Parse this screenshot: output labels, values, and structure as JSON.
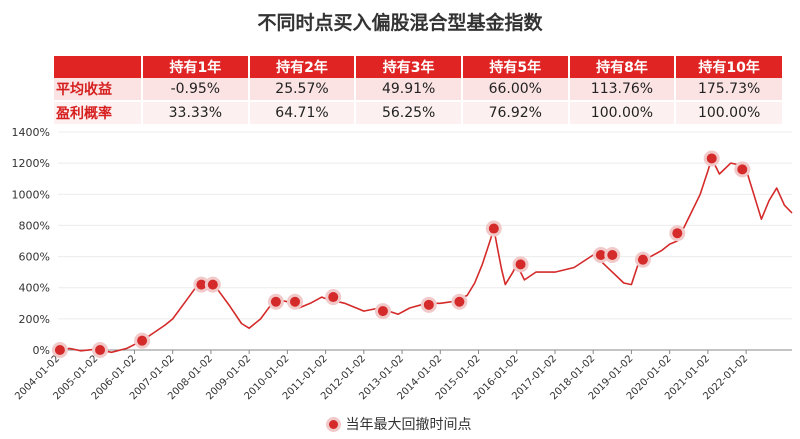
{
  "title": "不同时点买入偏股混合型基金指数",
  "table": {
    "headers": [
      "持有1年",
      "持有2年",
      "持有3年",
      "持有5年",
      "持有8年",
      "持有10年"
    ],
    "rows": [
      {
        "label": "平均收益",
        "values": [
          "-0.95%",
          "25.57%",
          "49.91%",
          "66.00%",
          "113.76%",
          "175.73%"
        ]
      },
      {
        "label": "盈利概率",
        "values": [
          "33.33%",
          "64.71%",
          "56.25%",
          "76.92%",
          "100.00%",
          "100.00%"
        ]
      }
    ]
  },
  "legend_label": "当年最大回撤时间点",
  "colors": {
    "line": "#d42a2a",
    "header": "#e02424",
    "marker_ring": "#f2c9c9"
  },
  "chart_data": {
    "type": "line",
    "ylim": [
      0,
      1400
    ],
    "y_ticks": [
      "0%",
      "200%",
      "400%",
      "600%",
      "800%",
      "1000%",
      "1200%",
      "1400%"
    ],
    "x_ticks": [
      "2004-01-02",
      "2005-01-02",
      "2006-01-02",
      "2007-01-02",
      "2008-01-02",
      "2009-01-02",
      "2010-01-02",
      "2011-01-02",
      "2012-01-02",
      "2013-01-02",
      "2014-01-02",
      "2015-01-02",
      "2016-01-02",
      "2017-01-02",
      "2018-01-02",
      "2019-01-02",
      "2020-01-02",
      "2021-01-02",
      "2022-01-02"
    ],
    "series": [
      {
        "points": [
          [
            2004.0,
            0
          ],
          [
            2004.3,
            10
          ],
          [
            2004.6,
            -5
          ],
          [
            2005.0,
            5
          ],
          [
            2005.4,
            -15
          ],
          [
            2005.8,
            10
          ],
          [
            2006.2,
            60
          ],
          [
            2006.5,
            110
          ],
          [
            2006.8,
            160
          ],
          [
            2007.0,
            200
          ],
          [
            2007.3,
            300
          ],
          [
            2007.6,
            400
          ],
          [
            2007.8,
            440
          ],
          [
            2008.0,
            420
          ],
          [
            2008.2,
            380
          ],
          [
            2008.5,
            280
          ],
          [
            2008.8,
            170
          ],
          [
            2009.0,
            140
          ],
          [
            2009.3,
            200
          ],
          [
            2009.6,
            300
          ],
          [
            2009.8,
            320
          ],
          [
            2010.0,
            310
          ],
          [
            2010.3,
            270
          ],
          [
            2010.6,
            300
          ],
          [
            2010.9,
            340
          ],
          [
            2011.0,
            330
          ],
          [
            2011.5,
            300
          ],
          [
            2011.9,
            260
          ],
          [
            2012.0,
            250
          ],
          [
            2012.4,
            270
          ],
          [
            2012.9,
            230
          ],
          [
            2013.2,
            270
          ],
          [
            2013.5,
            290
          ],
          [
            2013.8,
            300
          ],
          [
            2014.0,
            300
          ],
          [
            2014.3,
            310
          ],
          [
            2014.7,
            350
          ],
          [
            2014.9,
            430
          ],
          [
            2015.1,
            550
          ],
          [
            2015.3,
            700
          ],
          [
            2015.4,
            780
          ],
          [
            2015.5,
            650
          ],
          [
            2015.6,
            520
          ],
          [
            2015.7,
            420
          ],
          [
            2015.9,
            500
          ],
          [
            2016.0,
            550
          ],
          [
            2016.2,
            450
          ],
          [
            2016.5,
            500
          ],
          [
            2017.0,
            500
          ],
          [
            2017.5,
            530
          ],
          [
            2018.0,
            610
          ],
          [
            2018.2,
            570
          ],
          [
            2018.5,
            500
          ],
          [
            2018.8,
            430
          ],
          [
            2019.0,
            420
          ],
          [
            2019.2,
            570
          ],
          [
            2019.5,
            600
          ],
          [
            2019.8,
            640
          ],
          [
            2020.0,
            680
          ],
          [
            2020.2,
            700
          ],
          [
            2020.5,
            850
          ],
          [
            2020.8,
            1000
          ],
          [
            2021.0,
            1150
          ],
          [
            2021.1,
            1230
          ],
          [
            2021.3,
            1130
          ],
          [
            2021.6,
            1200
          ],
          [
            2021.8,
            1190
          ],
          [
            2022.0,
            1160
          ],
          [
            2022.2,
            1000
          ],
          [
            2022.4,
            840
          ],
          [
            2022.6,
            960
          ],
          [
            2022.8,
            1040
          ],
          [
            2023.0,
            930
          ],
          [
            2023.2,
            880
          ]
        ]
      }
    ],
    "drawdown_points": [
      [
        2004.05,
        0
      ],
      [
        2005.1,
        0
      ],
      [
        2006.2,
        60
      ],
      [
        2007.75,
        420
      ],
      [
        2008.05,
        420
      ],
      [
        2009.7,
        310
      ],
      [
        2010.2,
        310
      ],
      [
        2011.2,
        340
      ],
      [
        2012.5,
        250
      ],
      [
        2013.7,
        290
      ],
      [
        2014.5,
        310
      ],
      [
        2015.4,
        780
      ],
      [
        2016.1,
        550
      ],
      [
        2018.2,
        610
      ],
      [
        2018.5,
        610
      ],
      [
        2019.3,
        580
      ],
      [
        2020.2,
        750
      ],
      [
        2021.1,
        1230
      ],
      [
        2021.9,
        1160
      ]
    ]
  }
}
